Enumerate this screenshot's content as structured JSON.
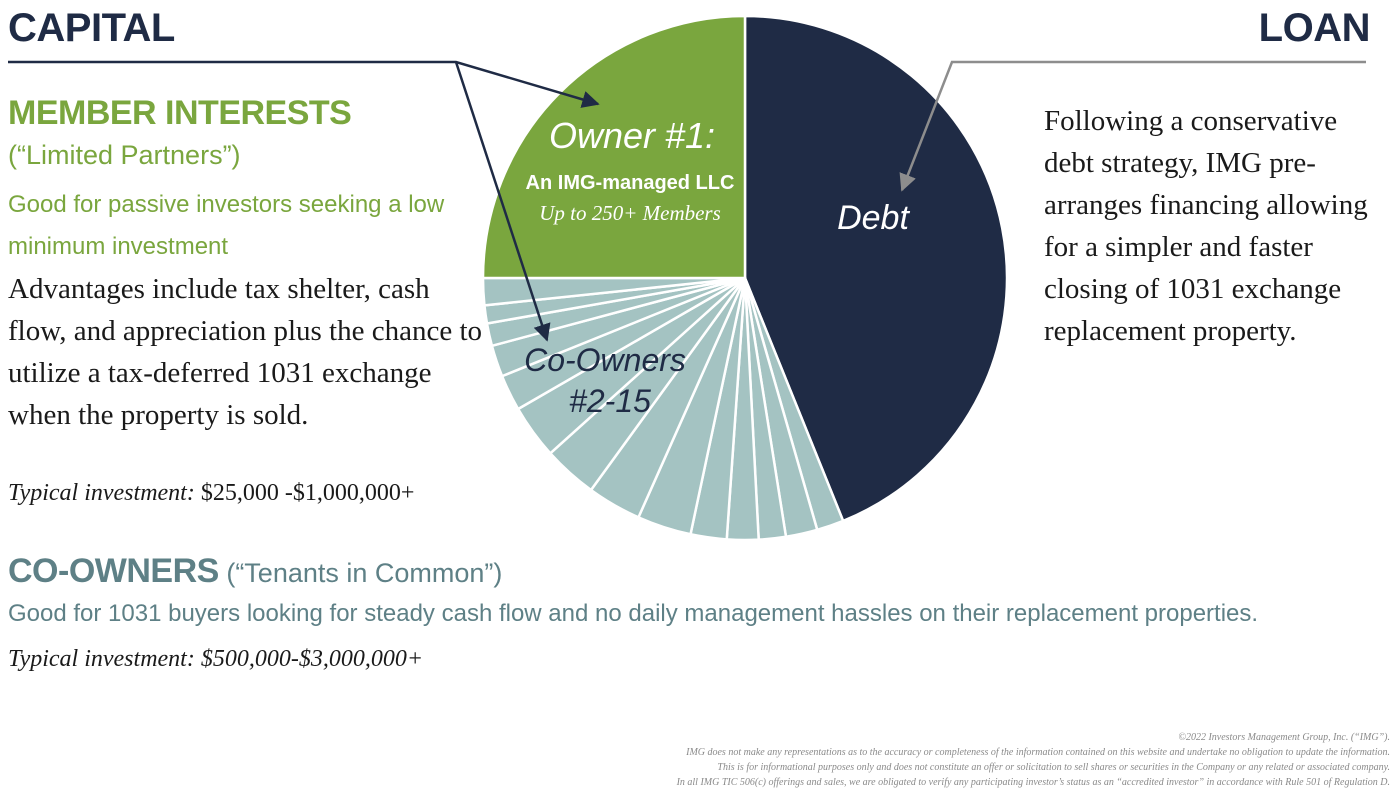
{
  "capital": {
    "title": "CAPITAL"
  },
  "loan": {
    "title": "LOAN",
    "text": "Following a conservative debt strategy, IMG pre-arranges financing allowing for a simpler and faster closing of 1031 exchange replacement property."
  },
  "member": {
    "heading": "MEMBER INTERESTS",
    "sub": "(“Limited Partners”)",
    "good_for": "Good for passive investors seeking a low minimum investment",
    "advantages": "Advantages include tax shelter, cash flow, and appreciation plus the chance to utilize a tax-deferred 1031 exchange when the property is sold.",
    "typical_label": "Typical investment:",
    "typical_value": " $25,000 -$1,000,000+"
  },
  "coowners": {
    "heading": "CO-OWNERS",
    "sub": " (“Tenants in Common”)",
    "good_for": "Good for 1031 buyers looking for steady cash flow and no daily management hassles on their replacement properties.",
    "typical": "Typical investment: $500,000-$3,000,000+"
  },
  "pie": {
    "owner1_title": "Owner #1:",
    "owner1_line2": "An IMG-managed LLC",
    "owner1_line3": "Up to 250+ Members",
    "coowners_line1": "Co-Owners",
    "coowners_line2": "#2-15",
    "debt_label": "Debt"
  },
  "colors": {
    "navy": "#1f2b45",
    "green": "#7aa63e",
    "slate": "#5e8086",
    "light_teal": "#a4c3c2"
  },
  "footer": {
    "line1": "©2022 Investors Management Group, Inc. (“IMG”).",
    "line2": "IMG does not make any representations as to the accuracy or completeness of the information contained on this website and undertake no obligation to update the information.",
    "line3": "This is for informational purposes only and does not constitute an offer or solicitation to sell shares or securities in the Company or any related or associated company.",
    "line4": "In all IMG TIC 506(c) offerings and sales, we are obligated to verify any participating investor’s status as an “accredited investor” in accordance with Rule 501 of Regulation D."
  }
}
